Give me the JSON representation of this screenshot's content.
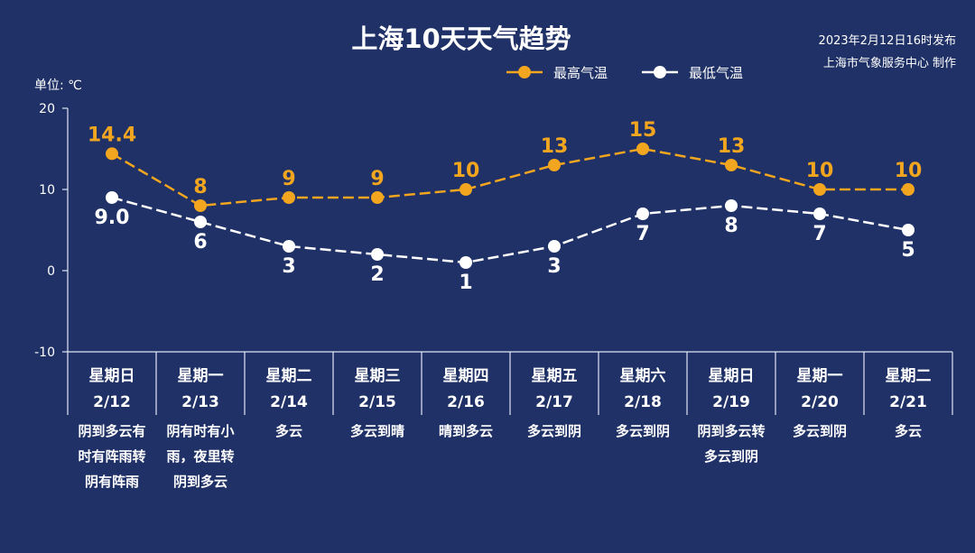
{
  "header": {
    "title": "上海10天天气趋势",
    "publish_time": "2023年2月12日16时发布",
    "publisher": "上海市气象服务中心 制作",
    "unit": "单位: ℃"
  },
  "colors": {
    "background": "#1f3166",
    "high": "#f2a51f",
    "low": "#ffffff"
  },
  "chart_data": {
    "type": "line",
    "ylim": [
      -10,
      20
    ],
    "yticks": [
      "-10",
      "0",
      "10",
      "20"
    ],
    "days": [
      {
        "weekday": "星期日",
        "date": "2/12",
        "weather": [
          "阴到多云有",
          "时有阵雨转",
          "阴有阵雨"
        ]
      },
      {
        "weekday": "星期一",
        "date": "2/13",
        "weather": [
          "阴有时有小",
          "雨，夜里转",
          "阴到多云"
        ]
      },
      {
        "weekday": "星期二",
        "date": "2/14",
        "weather": [
          "多云"
        ]
      },
      {
        "weekday": "星期三",
        "date": "2/15",
        "weather": [
          "多云到晴"
        ]
      },
      {
        "weekday": "星期四",
        "date": "2/16",
        "weather": [
          "晴到多云"
        ]
      },
      {
        "weekday": "星期五",
        "date": "2/17",
        "weather": [
          "多云到阴"
        ]
      },
      {
        "weekday": "星期六",
        "date": "2/18",
        "weather": [
          "多云到阴"
        ]
      },
      {
        "weekday": "星期日",
        "date": "2/19",
        "weather": [
          "阴到多云转",
          "多云到阴"
        ]
      },
      {
        "weekday": "星期一",
        "date": "2/20",
        "weather": [
          "多云到阴"
        ]
      },
      {
        "weekday": "星期二",
        "date": "2/21",
        "weather": [
          "多云"
        ]
      }
    ],
    "series": [
      {
        "name": "最高气温",
        "values": [
          14.4,
          8,
          9,
          9,
          10,
          13,
          15,
          13,
          10,
          10
        ],
        "labels": [
          "14.4",
          "8",
          "9",
          "9",
          "10",
          "13",
          "15",
          "13",
          "10",
          "10"
        ]
      },
      {
        "name": "最低气温",
        "values": [
          9.0,
          6,
          3,
          2,
          1,
          3,
          7,
          8,
          7,
          5
        ],
        "labels": [
          "9.0",
          "6",
          "3",
          "2",
          "1",
          "3",
          "7",
          "8",
          "7",
          "5"
        ]
      }
    ]
  }
}
